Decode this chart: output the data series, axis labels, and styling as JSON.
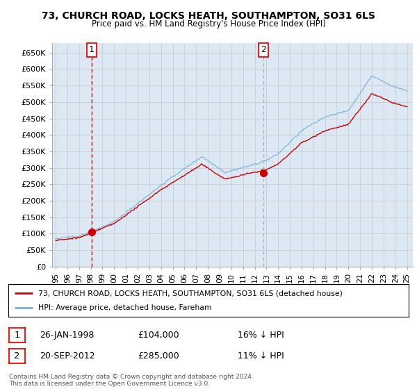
{
  "title": "73, CHURCH ROAD, LOCKS HEATH, SOUTHAMPTON, SO31 6LS",
  "subtitle": "Price paid vs. HM Land Registry's House Price Index (HPI)",
  "ylabel_ticks": [
    "£0",
    "£50K",
    "£100K",
    "£150K",
    "£200K",
    "£250K",
    "£300K",
    "£350K",
    "£400K",
    "£450K",
    "£500K",
    "£550K",
    "£600K",
    "£650K"
  ],
  "ytick_vals": [
    0,
    50000,
    100000,
    150000,
    200000,
    250000,
    300000,
    350000,
    400000,
    450000,
    500000,
    550000,
    600000,
    650000
  ],
  "ylim": [
    0,
    680000
  ],
  "xlim_start": 1994.7,
  "xlim_end": 2025.5,
  "sale1_x": 1998.07,
  "sale1_y": 104000,
  "sale1_label": "1",
  "sale1_date": "26-JAN-1998",
  "sale1_price": "£104,000",
  "sale1_hpi": "16% ↓ HPI",
  "sale2_x": 2012.72,
  "sale2_y": 285000,
  "sale2_label": "2",
  "sale2_date": "20-SEP-2012",
  "sale2_price": "£285,000",
  "sale2_hpi": "11% ↓ HPI",
  "line1_color": "#cc0000",
  "line2_color": "#7ab0d4",
  "vline1_color": "#cc0000",
  "vline2_color": "#aaaaaa",
  "grid_color": "#cccccc",
  "bg_color": "#ffffff",
  "plot_bg_color": "#dce9f5",
  "legend_label1": "73, CHURCH ROAD, LOCKS HEATH, SOUTHAMPTON, SO31 6LS (detached house)",
  "legend_label2": "HPI: Average price, detached house, Fareham",
  "footnote": "Contains HM Land Registry data © Crown copyright and database right 2024.\nThis data is licensed under the Open Government Licence v3.0.",
  "x_ticks": [
    1995,
    1996,
    1997,
    1998,
    1999,
    2000,
    2001,
    2002,
    2003,
    2004,
    2005,
    2006,
    2007,
    2008,
    2009,
    2010,
    2011,
    2012,
    2013,
    2014,
    2015,
    2016,
    2017,
    2018,
    2019,
    2020,
    2021,
    2022,
    2023,
    2024,
    2025
  ],
  "x_tick_labels": [
    "95",
    "96",
    "97",
    "98",
    "99",
    "00",
    "01",
    "02",
    "03",
    "04",
    "05",
    "06",
    "07",
    "08",
    "09",
    "10",
    "11",
    "12",
    "13",
    "14",
    "15",
    "16",
    "17",
    "18",
    "19",
    "20",
    "21",
    "22",
    "23",
    "24",
    "25"
  ]
}
